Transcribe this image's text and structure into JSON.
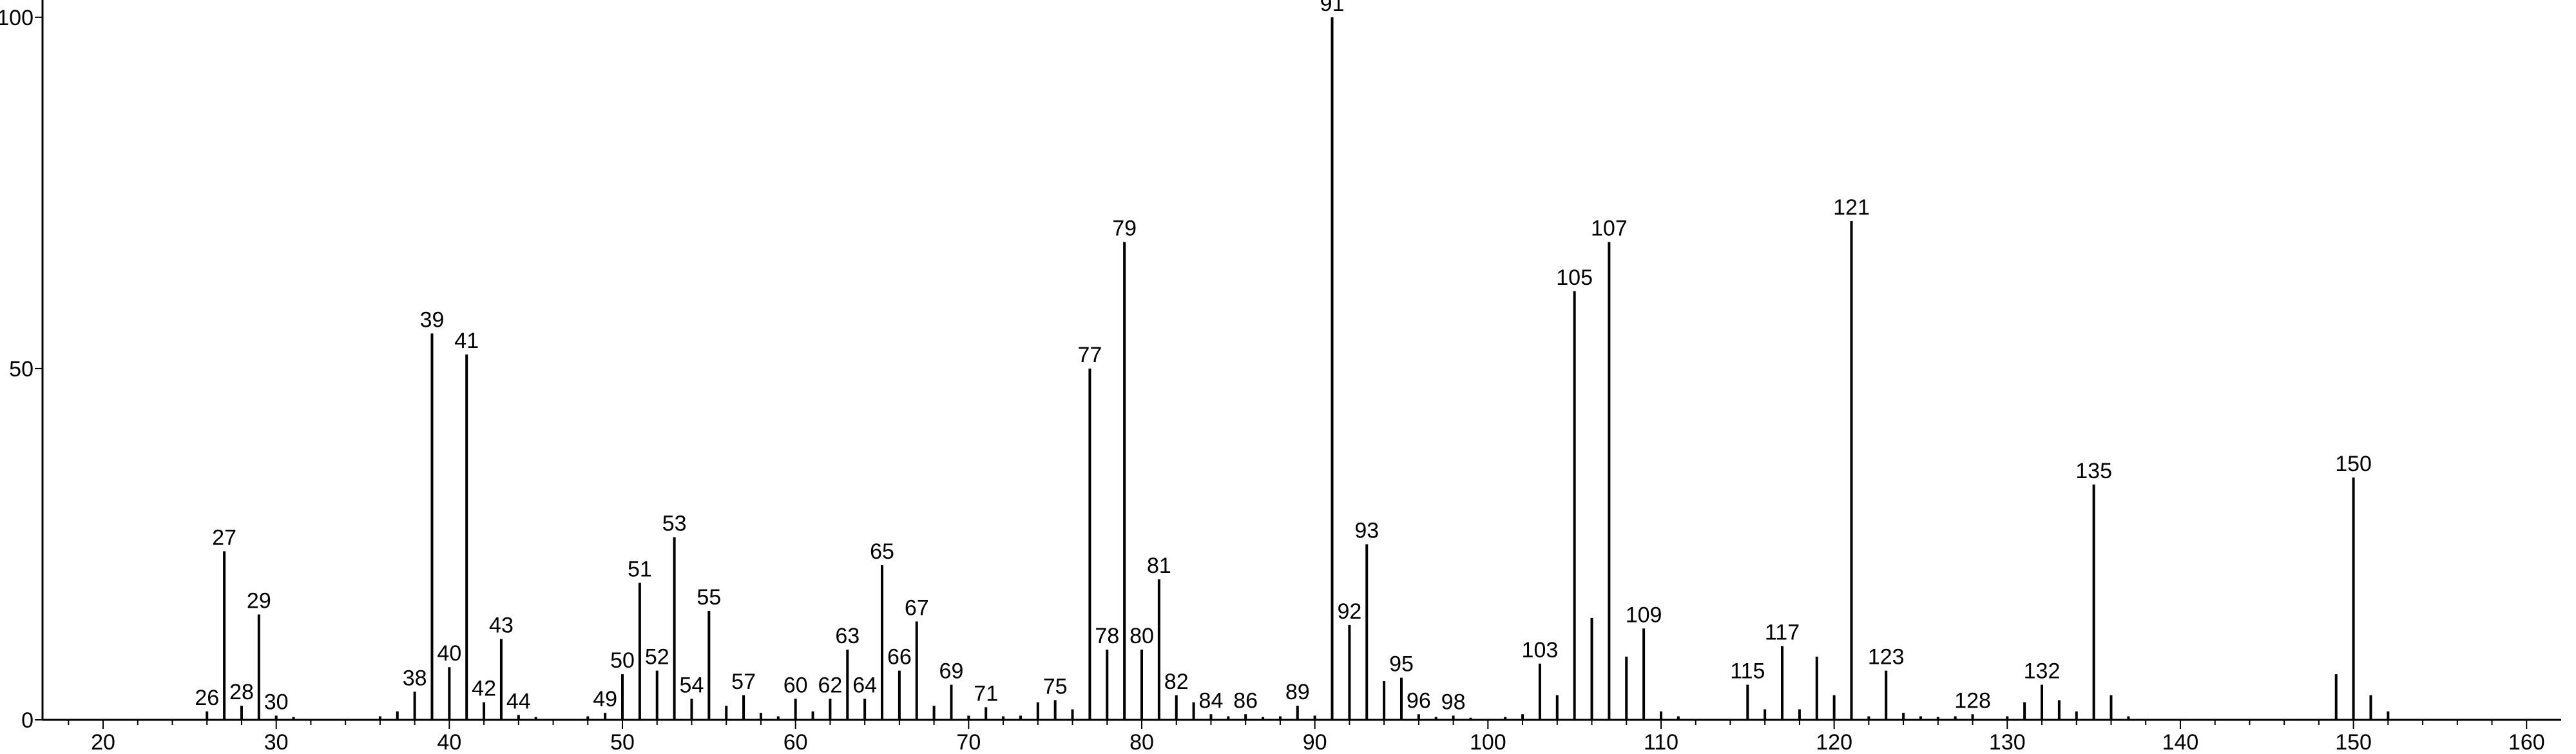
{
  "chart_data": {
    "type": "bar",
    "title": "",
    "xlabel": "",
    "ylabel": "",
    "xlim": [
      16.5,
      162
    ],
    "ylim": [
      0,
      102
    ],
    "x_ticks": [
      20,
      30,
      40,
      50,
      60,
      70,
      80,
      90,
      100,
      110,
      120,
      130,
      140,
      150,
      160
    ],
    "y_ticks": [
      0,
      50,
      100
    ],
    "grid": false,
    "colors": {
      "bars": "#000000",
      "axes": "#000000",
      "text": "#000000"
    },
    "peaks": [
      {
        "mz": 26,
        "intensity": 1.2,
        "label": "26"
      },
      {
        "mz": 27,
        "intensity": 24,
        "label": "27"
      },
      {
        "mz": 28,
        "intensity": 2,
        "label": "28"
      },
      {
        "mz": 29,
        "intensity": 15,
        "label": "29"
      },
      {
        "mz": 30,
        "intensity": 0.6,
        "label": "30"
      },
      {
        "mz": 31,
        "intensity": 0.4,
        "label": ""
      },
      {
        "mz": 36,
        "intensity": 0.5,
        "label": ""
      },
      {
        "mz": 37,
        "intensity": 1.2,
        "label": ""
      },
      {
        "mz": 38,
        "intensity": 4,
        "label": "38"
      },
      {
        "mz": 39,
        "intensity": 55,
        "label": "39"
      },
      {
        "mz": 40,
        "intensity": 7.5,
        "label": "40"
      },
      {
        "mz": 41,
        "intensity": 52,
        "label": "41"
      },
      {
        "mz": 42,
        "intensity": 2.5,
        "label": "42"
      },
      {
        "mz": 43,
        "intensity": 11.5,
        "label": "43"
      },
      {
        "mz": 44,
        "intensity": 0.7,
        "label": "44"
      },
      {
        "mz": 45,
        "intensity": 0.4,
        "label": ""
      },
      {
        "mz": 48,
        "intensity": 0.5,
        "label": ""
      },
      {
        "mz": 49,
        "intensity": 1,
        "label": "49"
      },
      {
        "mz": 50,
        "intensity": 6.5,
        "label": "50"
      },
      {
        "mz": 51,
        "intensity": 19.5,
        "label": "51"
      },
      {
        "mz": 52,
        "intensity": 7,
        "label": "52"
      },
      {
        "mz": 53,
        "intensity": 26,
        "label": "53"
      },
      {
        "mz": 54,
        "intensity": 3,
        "label": "54"
      },
      {
        "mz": 55,
        "intensity": 15.5,
        "label": "55"
      },
      {
        "mz": 56,
        "intensity": 2,
        "label": ""
      },
      {
        "mz": 57,
        "intensity": 3.5,
        "label": "57"
      },
      {
        "mz": 58,
        "intensity": 1,
        "label": ""
      },
      {
        "mz": 59,
        "intensity": 0.5,
        "label": ""
      },
      {
        "mz": 60,
        "intensity": 3,
        "label": "60"
      },
      {
        "mz": 61,
        "intensity": 1.2,
        "label": ""
      },
      {
        "mz": 62,
        "intensity": 3,
        "label": "62"
      },
      {
        "mz": 63,
        "intensity": 10,
        "label": "63"
      },
      {
        "mz": 64,
        "intensity": 3,
        "label": "64"
      },
      {
        "mz": 65,
        "intensity": 22,
        "label": "65"
      },
      {
        "mz": 66,
        "intensity": 7,
        "label": "66"
      },
      {
        "mz": 67,
        "intensity": 14,
        "label": "67"
      },
      {
        "mz": 68,
        "intensity": 2,
        "label": ""
      },
      {
        "mz": 69,
        "intensity": 5,
        "label": "69"
      },
      {
        "mz": 70,
        "intensity": 0.6,
        "label": ""
      },
      {
        "mz": 71,
        "intensity": 1.8,
        "label": "71"
      },
      {
        "mz": 72,
        "intensity": 0.5,
        "label": ""
      },
      {
        "mz": 73,
        "intensity": 0.6,
        "label": ""
      },
      {
        "mz": 74,
        "intensity": 2.5,
        "label": ""
      },
      {
        "mz": 75,
        "intensity": 2.8,
        "label": "75"
      },
      {
        "mz": 76,
        "intensity": 1.5,
        "label": ""
      },
      {
        "mz": 77,
        "intensity": 50,
        "label": "77"
      },
      {
        "mz": 78,
        "intensity": 10,
        "label": "78"
      },
      {
        "mz": 79,
        "intensity": 68,
        "label": "79"
      },
      {
        "mz": 80,
        "intensity": 10,
        "label": "80"
      },
      {
        "mz": 81,
        "intensity": 20,
        "label": "81"
      },
      {
        "mz": 82,
        "intensity": 3.5,
        "label": "82"
      },
      {
        "mz": 83,
        "intensity": 2.5,
        "label": ""
      },
      {
        "mz": 84,
        "intensity": 0.8,
        "label": "84"
      },
      {
        "mz": 85,
        "intensity": 0.5,
        "label": ""
      },
      {
        "mz": 86,
        "intensity": 0.8,
        "label": "86"
      },
      {
        "mz": 87,
        "intensity": 0.4,
        "label": ""
      },
      {
        "mz": 88,
        "intensity": 0.5,
        "label": ""
      },
      {
        "mz": 89,
        "intensity": 2,
        "label": "89"
      },
      {
        "mz": 90,
        "intensity": 0.6,
        "label": ""
      },
      {
        "mz": 91,
        "intensity": 100,
        "label": "91"
      },
      {
        "mz": 92,
        "intensity": 13.5,
        "label": "92"
      },
      {
        "mz": 93,
        "intensity": 25,
        "label": "93"
      },
      {
        "mz": 94,
        "intensity": 5.5,
        "label": ""
      },
      {
        "mz": 95,
        "intensity": 6,
        "label": "95"
      },
      {
        "mz": 96,
        "intensity": 0.8,
        "label": "96"
      },
      {
        "mz": 97,
        "intensity": 0.4,
        "label": ""
      },
      {
        "mz": 98,
        "intensity": 0.6,
        "label": "98"
      },
      {
        "mz": 99,
        "intensity": 0.3,
        "label": ""
      },
      {
        "mz": 101,
        "intensity": 0.4,
        "label": ""
      },
      {
        "mz": 102,
        "intensity": 0.8,
        "label": ""
      },
      {
        "mz": 103,
        "intensity": 8,
        "label": "103"
      },
      {
        "mz": 104,
        "intensity": 3.5,
        "label": ""
      },
      {
        "mz": 105,
        "intensity": 61,
        "label": "105"
      },
      {
        "mz": 106,
        "intensity": 14.5,
        "label": ""
      },
      {
        "mz": 107,
        "intensity": 68,
        "label": "107"
      },
      {
        "mz": 108,
        "intensity": 9,
        "label": ""
      },
      {
        "mz": 109,
        "intensity": 13,
        "label": "109"
      },
      {
        "mz": 110,
        "intensity": 1.2,
        "label": ""
      },
      {
        "mz": 111,
        "intensity": 0.5,
        "label": ""
      },
      {
        "mz": 115,
        "intensity": 5,
        "label": "115"
      },
      {
        "mz": 116,
        "intensity": 1.5,
        "label": ""
      },
      {
        "mz": 117,
        "intensity": 10.5,
        "label": "117"
      },
      {
        "mz": 118,
        "intensity": 1.5,
        "label": ""
      },
      {
        "mz": 119,
        "intensity": 9,
        "label": ""
      },
      {
        "mz": 120,
        "intensity": 3.5,
        "label": ""
      },
      {
        "mz": 121,
        "intensity": 71,
        "label": "121"
      },
      {
        "mz": 122,
        "intensity": 0.5,
        "label": ""
      },
      {
        "mz": 123,
        "intensity": 7,
        "label": "123"
      },
      {
        "mz": 124,
        "intensity": 1,
        "label": ""
      },
      {
        "mz": 125,
        "intensity": 0.5,
        "label": ""
      },
      {
        "mz": 126,
        "intensity": 0.4,
        "label": ""
      },
      {
        "mz": 127,
        "intensity": 0.5,
        "label": ""
      },
      {
        "mz": 128,
        "intensity": 0.8,
        "label": "128"
      },
      {
        "mz": 130,
        "intensity": 0.5,
        "label": ""
      },
      {
        "mz": 131,
        "intensity": 2.5,
        "label": ""
      },
      {
        "mz": 132,
        "intensity": 5,
        "label": "132"
      },
      {
        "mz": 133,
        "intensity": 2.8,
        "label": ""
      },
      {
        "mz": 134,
        "intensity": 1.2,
        "label": ""
      },
      {
        "mz": 135,
        "intensity": 33.5,
        "label": "135"
      },
      {
        "mz": 136,
        "intensity": 3.5,
        "label": ""
      },
      {
        "mz": 137,
        "intensity": 0.5,
        "label": ""
      },
      {
        "mz": 149,
        "intensity": 6.5,
        "label": ""
      },
      {
        "mz": 150,
        "intensity": 34.5,
        "label": "150"
      },
      {
        "mz": 151,
        "intensity": 3.5,
        "label": ""
      },
      {
        "mz": 152,
        "intensity": 1.2,
        "label": ""
      }
    ]
  }
}
